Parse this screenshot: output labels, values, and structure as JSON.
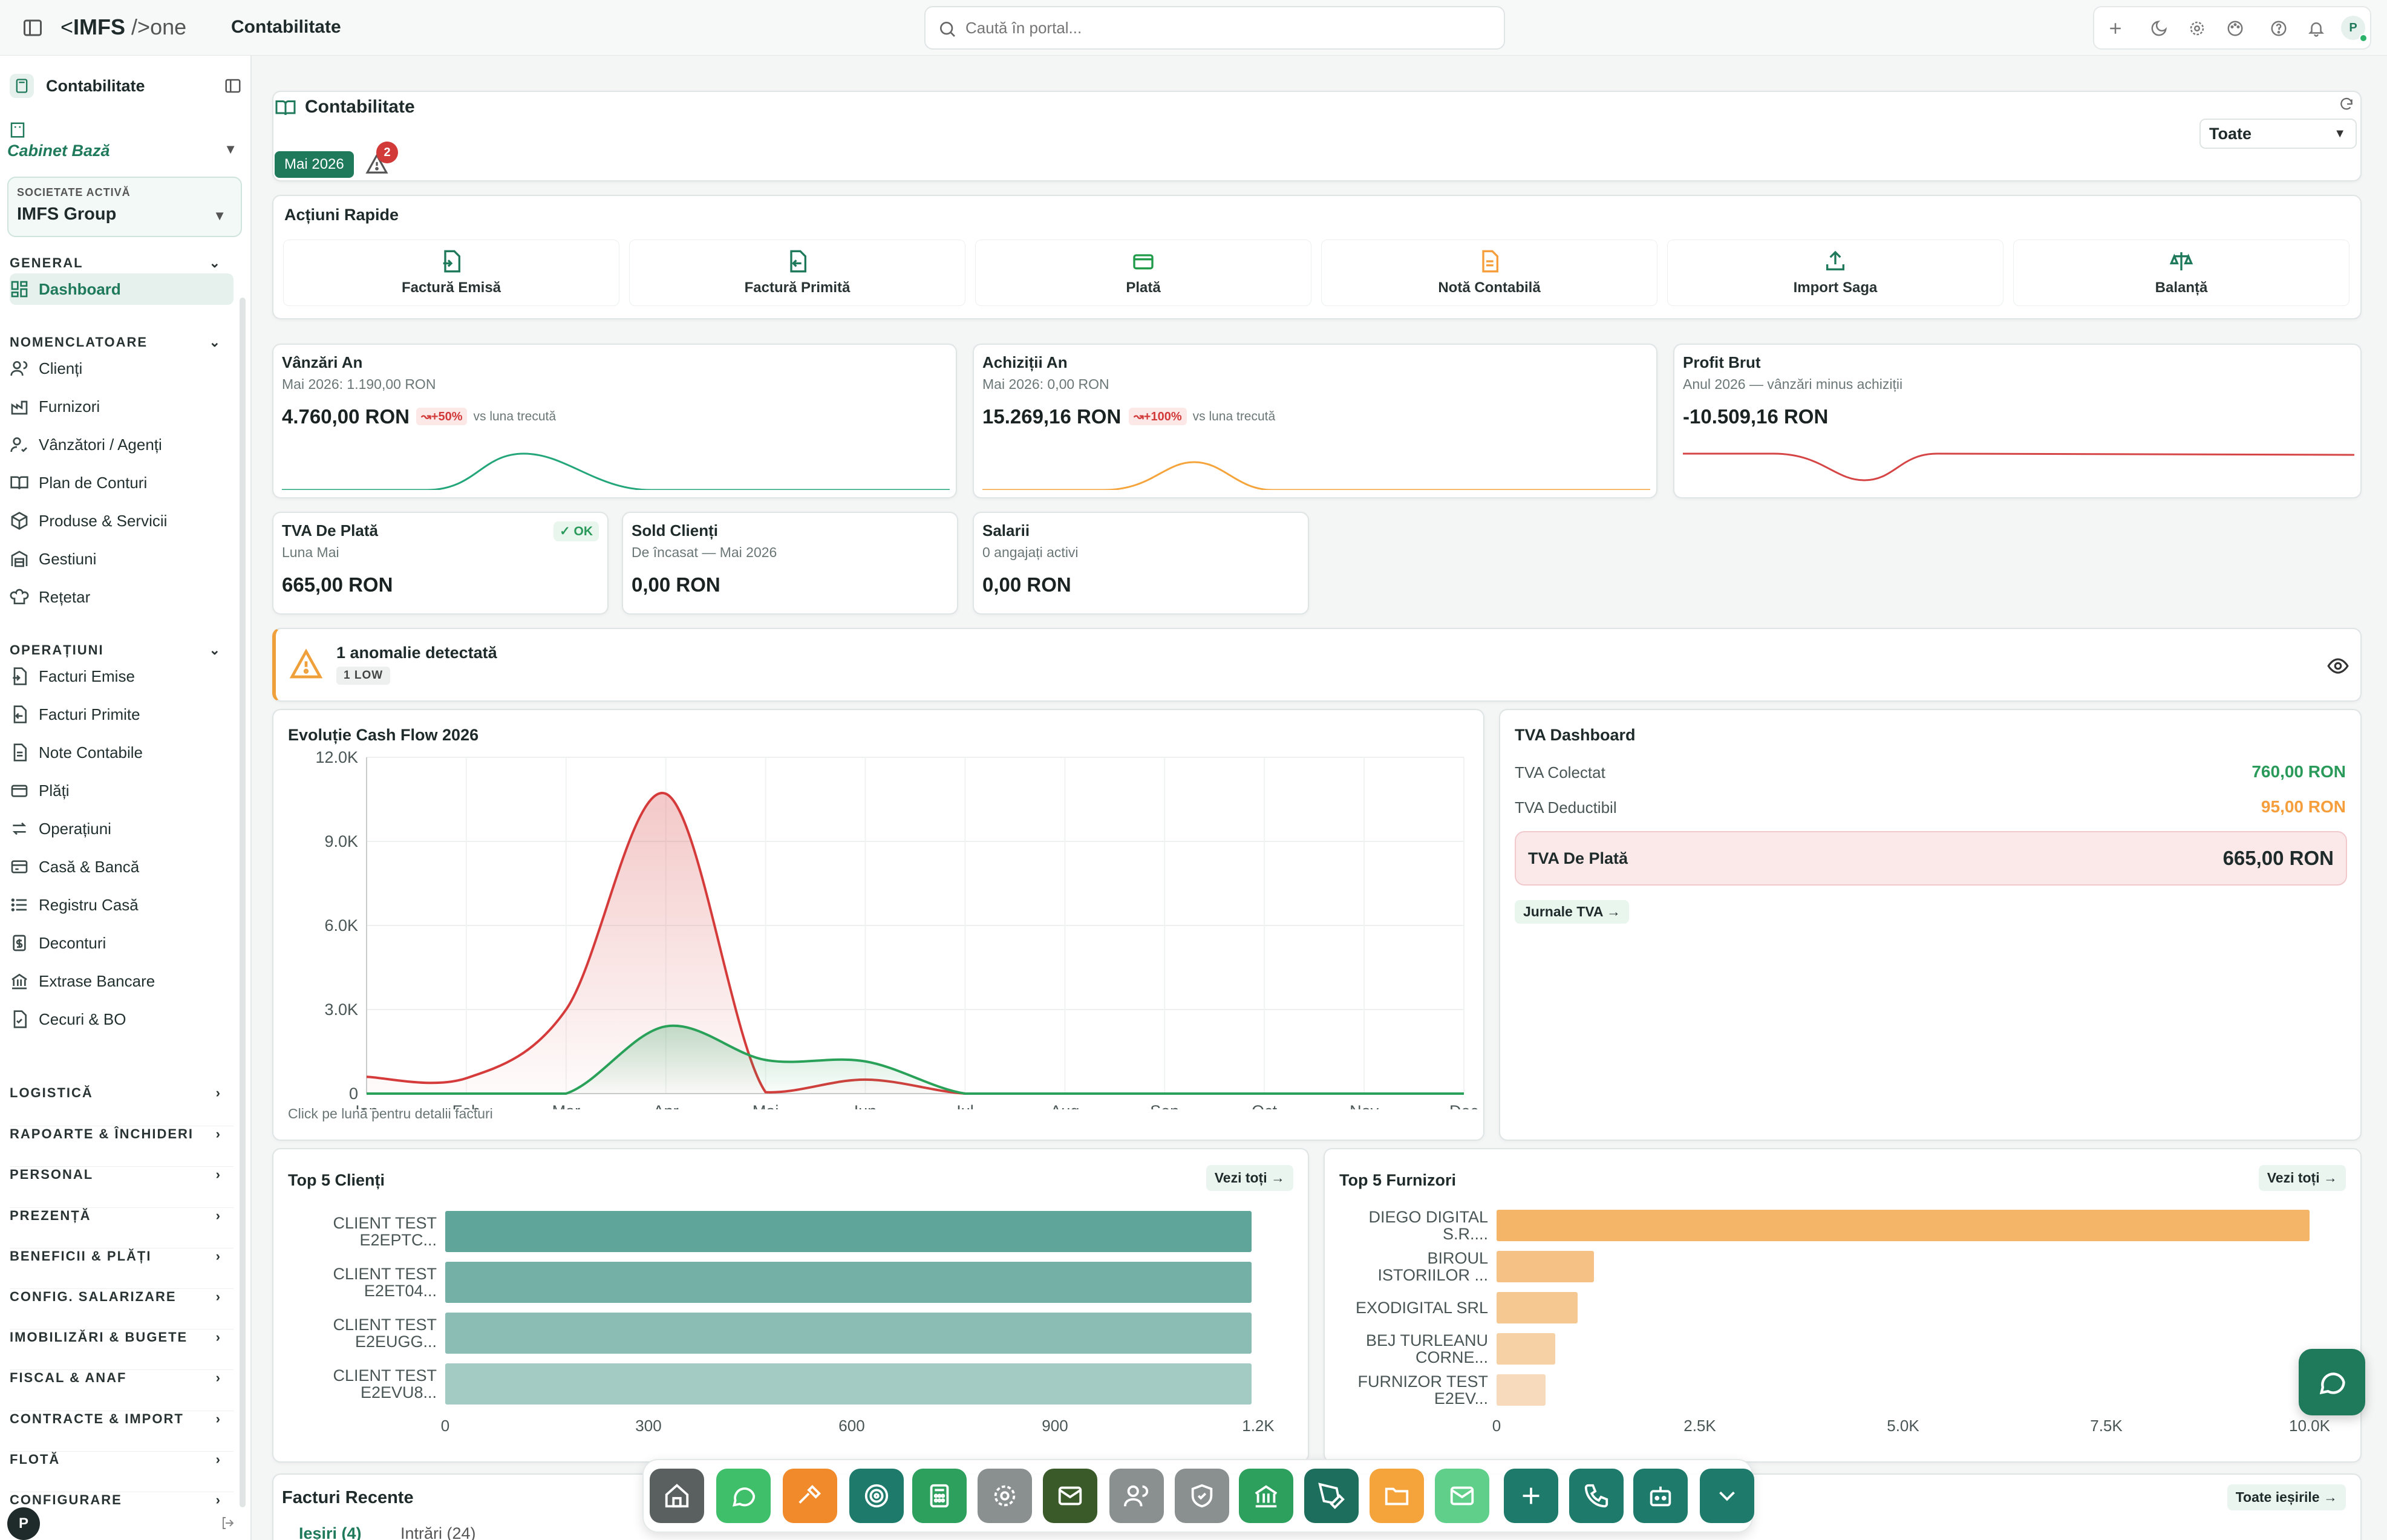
{
  "header": {
    "brand_prefix": "<",
    "brand_main": "IMFS",
    "brand_suffix": "/>one",
    "title": "Contabilitate",
    "search_placeholder": "Caută în portal...",
    "avatar": "P"
  },
  "sidebar": {
    "module": "Contabilitate",
    "cabinet": "Cabinet Bază",
    "company_label": "SOCIETATE ACTIVĂ",
    "company": "IMFS Group",
    "sections": [
      {
        "title": "GENERAL",
        "items": [
          {
            "label": "Dashboard",
            "icon": "dashboard-icon"
          }
        ]
      },
      {
        "title": "NOMENCLATOARE",
        "items": [
          {
            "label": "Clienți",
            "icon": "users-icon"
          },
          {
            "label": "Furnizori",
            "icon": "factory-icon"
          },
          {
            "label": "Vânzători / Agenți",
            "icon": "user-check-icon"
          },
          {
            "label": "Plan de Conturi",
            "icon": "book-icon"
          },
          {
            "label": "Produse & Servicii",
            "icon": "package-icon"
          },
          {
            "label": "Gestiuni",
            "icon": "warehouse-icon"
          },
          {
            "label": "Rețetar",
            "icon": "chef-hat-icon"
          }
        ]
      },
      {
        "title": "OPERAȚIUNI",
        "items": [
          {
            "label": "Facturi Emise",
            "icon": "invoice-out-icon"
          },
          {
            "label": "Facturi Primite",
            "icon": "invoice-in-icon"
          },
          {
            "label": "Note Contabile",
            "icon": "note-icon"
          },
          {
            "label": "Plăți",
            "icon": "wallet-icon"
          },
          {
            "label": "Operațiuni",
            "icon": "arrows-icon"
          },
          {
            "label": "Casă & Bancă",
            "icon": "bank-card-icon"
          },
          {
            "label": "Registru Casă",
            "icon": "list-icon"
          },
          {
            "label": "Deconturi",
            "icon": "receipt-icon"
          },
          {
            "label": "Extrase Bancare",
            "icon": "bank-icon"
          },
          {
            "label": "Cecuri & BO",
            "icon": "cheque-icon"
          }
        ]
      }
    ],
    "collapsed": [
      "LOGISTICĂ",
      "RAPOARTE & ÎNCHIDERI",
      "PERSONAL",
      "PREZENȚĂ",
      "BENEFICII & PLĂȚI",
      "CONFIG. SALARIZARE",
      "IMOBILIZĂRI & BUGETE",
      "FISCAL & ANAF",
      "CONTRACTE & IMPORT",
      "FLOTĂ",
      "CONFIGURARE"
    ]
  },
  "page": {
    "title": "Contabilitate",
    "period": "Mai 2026",
    "alert_count": "2",
    "filter": "Toate"
  },
  "quick_actions": {
    "title": "Acțiuni Rapide",
    "items": [
      {
        "label": "Factură Emisă",
        "color": "#1f7a5c"
      },
      {
        "label": "Factură Primită",
        "color": "#1f7a5c"
      },
      {
        "label": "Plată",
        "color": "#1f9b4a"
      },
      {
        "label": "Notă Contabilă",
        "color": "#f59e3b"
      },
      {
        "label": "Import Saga",
        "color": "#1f7a5c"
      },
      {
        "label": "Balanță",
        "color": "#1f7a5c"
      }
    ]
  },
  "kpis": {
    "sales": {
      "title": "Vânzări An",
      "sub": "Mai 2026: 1.190,00 RON",
      "value": "4.760,00 RON",
      "badge": "+50%",
      "note": "vs luna trecută",
      "color": "#23a67a"
    },
    "purchases": {
      "title": "Achiziții An",
      "sub": "Mai 2026: 0,00 RON",
      "value": "15.269,16 RON",
      "badge": "+100%",
      "note": "vs luna trecută",
      "color": "#f5a43c"
    },
    "profit": {
      "title": "Profit Brut",
      "sub": "Anul 2026 — vânzări minus achiziții",
      "value": "-10.509,16 RON",
      "color": "#d64545"
    },
    "vat": {
      "title": "TVA De Plată",
      "sub": "Luna Mai",
      "value": "665,00 RON",
      "badge": "OK"
    },
    "clients": {
      "title": "Sold Clienți",
      "sub": "De încasat — Mai 2026",
      "value": "0,00 RON"
    },
    "salaries": {
      "title": "Salarii",
      "sub": "0 angajați activi",
      "value": "0,00 RON"
    }
  },
  "anomaly": {
    "title": "1 anomalie detectată",
    "badge": "1 LOW"
  },
  "cashflow": {
    "title": "Evoluție Cash Flow 2026",
    "footer": "Click pe lună pentru detalii facturi"
  },
  "vat_dashboard": {
    "title": "TVA Dashboard",
    "collected_label": "TVA Colectat",
    "collected": "760,00 RON",
    "deductible_label": "TVA Deductibil",
    "deductible": "95,00 RON",
    "payable_label": "TVA De Plată",
    "payable": "665,00 RON",
    "link": "Jurnale TVA →"
  },
  "top_clients": {
    "title": "Top 5 Clienți",
    "link": "Vezi toți →"
  },
  "top_suppliers": {
    "title": "Top 5 Furnizori",
    "link": "Vezi toți →"
  },
  "recent": {
    "title": "Facturi Recente",
    "link": "Toate ieșirile →",
    "tab1": "Ieșiri (4)",
    "tab2": "Intrări (24)"
  },
  "chart_data": [
    {
      "type": "area",
      "title": "Evoluție Cash Flow 2026",
      "categories": [
        "Ian",
        "Feb",
        "Mar",
        "Apr",
        "Mai",
        "Iun",
        "Iul",
        "Aug",
        "Sep",
        "Oct",
        "Nov",
        "Dec"
      ],
      "ylim": [
        0,
        12000
      ],
      "yticks": [
        "0",
        "3.0K",
        "6.0K",
        "9.0K",
        "12.0K"
      ],
      "series": [
        {
          "color": "#d63b3b",
          "values": [
            600,
            550,
            3000,
            10700,
            50,
            500,
            0,
            0,
            0,
            0,
            0,
            0
          ]
        },
        {
          "color": "#2aa159",
          "values": [
            0,
            0,
            0,
            2400,
            1200,
            1150,
            0,
            0,
            0,
            0,
            0,
            0
          ]
        }
      ]
    },
    {
      "type": "bar",
      "title": "Top 5 Clienți",
      "categories": [
        "CLIENT TEST E2EPTC...",
        "CLIENT TEST E2ET04...",
        "CLIENT TEST E2EUGG...",
        "CLIENT TEST E2EVU8..."
      ],
      "values": [
        1190,
        1190,
        1190,
        1190
      ],
      "xlim": [
        0,
        1200
      ],
      "xticks": [
        "0",
        "300",
        "600",
        "900",
        "1.2K"
      ],
      "colors": [
        "#5fa59a",
        "#74b0a6",
        "#8bbdb4",
        "#a3cac3"
      ]
    },
    {
      "type": "bar",
      "title": "Top 5 Furnizori",
      "categories": [
        "DIEGO DIGITAL S.R....",
        "BIROUL ISTORIILOR ...",
        "EXODIGITAL SRL",
        "BEJ TURLEANU CORNE...",
        "FURNIZOR TEST E2EV..."
      ],
      "values": [
        10000,
        1200,
        1000,
        720,
        600
      ],
      "xlim": [
        0,
        10000
      ],
      "xticks": [
        "0",
        "2.5K",
        "5.0K",
        "7.5K",
        "10.0K"
      ],
      "colors": [
        "#f4b568",
        "#f6c185",
        "#f6c891",
        "#f6d1a5",
        "#f6dabb"
      ]
    }
  ]
}
